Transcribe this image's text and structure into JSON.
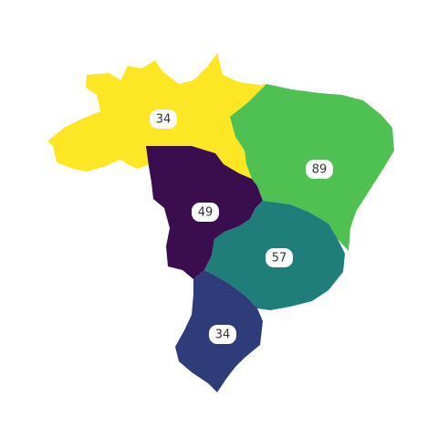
{
  "map": {
    "regions": [
      {
        "id": "north",
        "value": "34",
        "color": "#fde725"
      },
      {
        "id": "northeast",
        "value": "89",
        "color": "#4fc153"
      },
      {
        "id": "center-west",
        "value": "49",
        "color": "#3a0d4f"
      },
      {
        "id": "southeast",
        "value": "57",
        "color": "#1f7e7a"
      },
      {
        "id": "south",
        "value": "34",
        "color": "#2f3c7a"
      }
    ]
  }
}
